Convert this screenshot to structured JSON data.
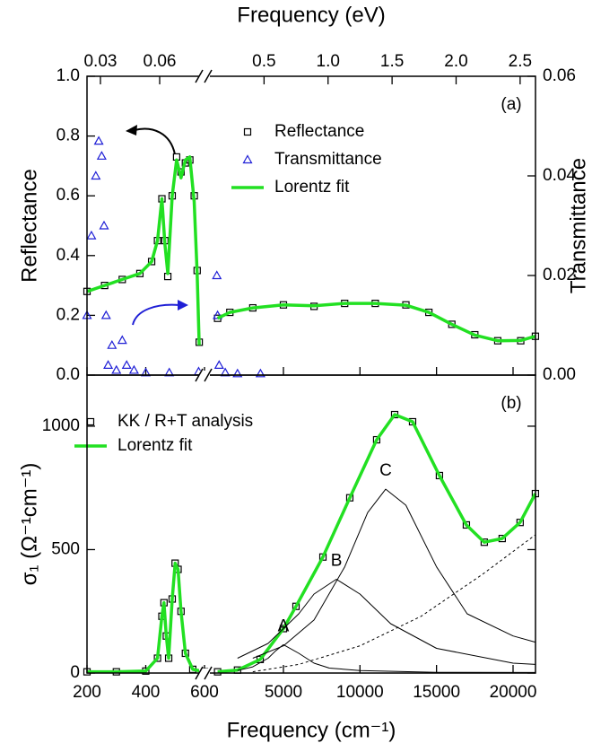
{
  "chart_data": [
    {
      "type": "line",
      "panel_label": "(a)",
      "top_axis": {
        "title": "Frequency (eV)",
        "segments": [
          {
            "xlim": [
              0.0232,
              0.0827
            ],
            "xticks": [
              0.03,
              0.06
            ]
          },
          {
            "xlim": [
              0.035,
              2.62
            ],
            "xticks": [
              0.5,
              {
                "value": 1,
                "label": "1.0"
              },
              1.5,
              {
                "value": 2,
                "label": "2.0"
              },
              2.5
            ]
          }
        ]
      },
      "x_segments": [
        {
          "xlim": [
            200,
            600
          ],
          "xticks": [
            200,
            400,
            600
          ]
        },
        {
          "xlim": [
            -155,
            21465
          ],
          "xticks": [
            5000,
            10000,
            15000,
            20000
          ]
        }
      ],
      "ylabel": "Reflectance",
      "ylim": [
        0,
        1
      ],
      "yticks": [
        {
          "value": 0,
          "label": "0.0"
        },
        0.2,
        0.4,
        0.6,
        0.8,
        {
          "value": 1,
          "label": "1.0"
        }
      ],
      "y2label": "Transmittance",
      "y2lim": [
        0,
        0.06
      ],
      "y2ticks": [
        {
          "value": 0,
          "label": "0.00"
        },
        0.02,
        0.04,
        0.06
      ],
      "series": [
        {
          "name": "Reflectance",
          "marker": "square",
          "color": "#000000",
          "x": [
            200,
            260,
            320,
            380,
            420,
            440,
            455,
            465,
            475,
            490,
            505,
            520,
            535,
            550,
            565,
            575,
            582,
            700,
            1500,
            3000,
            5000,
            7000,
            9000,
            11000,
            13000,
            14500,
            16000,
            17500,
            19000,
            20500,
            21460
          ],
          "values": [
            0.28,
            0.3,
            0.32,
            0.34,
            0.38,
            0.45,
            0.59,
            0.45,
            0.33,
            0.6,
            0.73,
            0.68,
            0.71,
            0.72,
            0.6,
            0.35,
            0.11,
            0.19,
            0.21,
            0.225,
            0.235,
            0.23,
            0.24,
            0.24,
            0.235,
            0.21,
            0.17,
            0.135,
            0.115,
            0.115,
            0.13
          ]
        },
        {
          "name": "Transmittance",
          "marker": "triangle",
          "color": "#1f1fd6",
          "axis": "y2",
          "x": [
            200,
            215,
            230,
            240,
            250,
            258,
            265,
            272,
            285,
            300,
            320,
            335,
            360,
            400,
            480,
            580,
            650,
            700,
            800,
            1200,
            2000,
            3500
          ],
          "values": [
            0.012,
            0.028,
            0.04,
            0.047,
            0.044,
            0.03,
            0.012,
            0.002,
            0.006,
            0.001,
            0.007,
            0.002,
            0.001,
            0.0005,
            0.0005,
            0.0007,
            0.02,
            0.012,
            0.002,
            0.0005,
            0.0003,
            0.0003
          ]
        },
        {
          "name": "Lorentz fit",
          "marker": "line",
          "color": "#22e022",
          "x": [
            200,
            260,
            320,
            380,
            420,
            440,
            455,
            465,
            475,
            490,
            505,
            520,
            535,
            550,
            565,
            575,
            582,
            700,
            1500,
            3000,
            5000,
            7000,
            9000,
            11000,
            13000,
            14500,
            16000,
            17500,
            19000,
            20500,
            21460
          ],
          "values": [
            0.28,
            0.3,
            0.32,
            0.34,
            0.38,
            0.45,
            0.59,
            0.44,
            0.34,
            0.6,
            0.72,
            0.66,
            0.72,
            0.73,
            0.58,
            0.34,
            0.1,
            0.19,
            0.21,
            0.225,
            0.235,
            0.232,
            0.24,
            0.24,
            0.234,
            0.21,
            0.17,
            0.134,
            0.115,
            0.116,
            0.13
          ]
        }
      ]
    },
    {
      "type": "line",
      "panel_label": "(b)",
      "xlabel": "Frequency (cm⁻¹)",
      "x_segments": [
        {
          "xlim": [
            200,
            600
          ],
          "xticks": [
            200,
            400,
            600
          ]
        },
        {
          "xlim": [
            -155,
            21465
          ],
          "xticks": [
            5000,
            10000,
            15000,
            20000
          ]
        }
      ],
      "ylabel": "σ₁ (Ω⁻¹cm⁻¹)",
      "ylim": [
        0,
        1207
      ],
      "yticks": [
        0,
        500,
        1000
      ],
      "series": [
        {
          "name": "KK / R+T analysis",
          "marker": "square",
          "color": "#000000",
          "x": [
            200,
            300,
            400,
            440,
            455,
            462,
            470,
            478,
            490,
            500,
            510,
            520,
            535,
            560,
            600,
            700,
            2000,
            3480,
            5000,
            5820,
            7580,
            9335,
            11090,
            12265,
            13436,
            15190,
            16950,
            18120,
            19290,
            20460,
            21460
          ],
          "values": [
            5,
            5,
            8,
            60,
            230,
            285,
            150,
            60,
            300,
            445,
            420,
            250,
            80,
            15,
            5,
            5,
            12,
            55,
            180,
            270,
            470,
            710,
            945,
            1047,
            1018,
            800,
            600,
            530,
            545,
            610,
            727
          ]
        },
        {
          "name": "Lorentz fit",
          "marker": "line",
          "color": "#22e022",
          "x": [
            200,
            300,
            400,
            440,
            455,
            462,
            470,
            478,
            490,
            500,
            510,
            520,
            535,
            560,
            600,
            700,
            2000,
            3480,
            5000,
            5820,
            7580,
            9335,
            11090,
            12265,
            13436,
            15190,
            16950,
            18120,
            19290,
            20460,
            21460
          ],
          "values": [
            5,
            5,
            8,
            60,
            230,
            285,
            150,
            60,
            300,
            445,
            420,
            250,
            80,
            15,
            5,
            5,
            12,
            55,
            180,
            270,
            470,
            710,
            945,
            1047,
            1018,
            800,
            600,
            530,
            545,
            610,
            727
          ]
        },
        {
          "label": "A",
          "marker": "line",
          "color": "#000000",
          "x": [
            2000,
            3000,
            4000,
            4500,
            5000,
            6000,
            7000,
            8000,
            10000,
            15000,
            21460
          ],
          "values": [
            10,
            25,
            60,
            90,
            115,
            80,
            40,
            20,
            10,
            3,
            2
          ]
        },
        {
          "label": "B",
          "marker": "line",
          "color": "#000000",
          "x": [
            2000,
            4000,
            6000,
            7000,
            8460,
            10000,
            12000,
            15000,
            20000,
            21460
          ],
          "values": [
            60,
            120,
            240,
            320,
            380,
            320,
            200,
            100,
            40,
            35
          ]
        },
        {
          "label": "C",
          "marker": "line",
          "color": "#000000",
          "x": [
            3000,
            5000,
            7000,
            9000,
            10500,
            11680,
            13000,
            15000,
            17000,
            20000,
            21460
          ],
          "values": [
            60,
            110,
            215,
            430,
            650,
            745,
            680,
            430,
            240,
            150,
            125
          ]
        },
        {
          "marker": "line",
          "dash": true,
          "color": "#000000",
          "x": [
            3000,
            6000,
            10000,
            14000,
            18000,
            21460
          ],
          "values": [
            5,
            35,
            110,
            230,
            400,
            560
          ]
        }
      ]
    }
  ]
}
